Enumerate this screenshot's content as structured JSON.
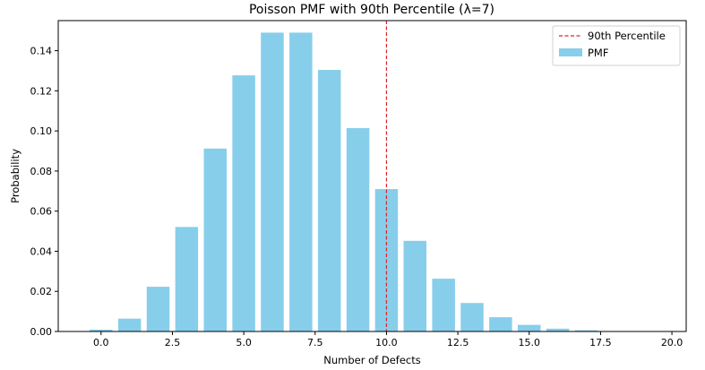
{
  "chart_data": {
    "type": "bar",
    "title": "Poisson PMF with 90th Percentile (λ=7)",
    "xlabel": "Number of Defects",
    "ylabel": "Probability",
    "x": [
      0,
      1,
      2,
      3,
      4,
      5,
      6,
      7,
      8,
      9,
      10,
      11,
      12,
      13,
      14,
      15,
      16,
      17,
      18,
      19,
      20
    ],
    "values": [
      0.0009,
      0.0064,
      0.0223,
      0.0521,
      0.0912,
      0.1277,
      0.149,
      0.149,
      0.1304,
      0.1014,
      0.071,
      0.0452,
      0.0263,
      0.0142,
      0.0071,
      0.0033,
      0.0014,
      0.0006,
      0.0002,
      0.0001,
      0.0
    ],
    "xlim": [
      -1.5,
      20.5
    ],
    "ylim": [
      0,
      0.155
    ],
    "xticks": [
      0,
      2.5,
      5,
      7.5,
      10,
      12.5,
      15,
      17.5,
      20
    ],
    "xtick_labels": [
      "0.0",
      "2.5",
      "5.0",
      "7.5",
      "10.0",
      "12.5",
      "15.0",
      "17.5",
      "20.0"
    ],
    "yticks": [
      0,
      0.02,
      0.04,
      0.06,
      0.08,
      0.1,
      0.12,
      0.14
    ],
    "ytick_labels": [
      "0.00",
      "0.02",
      "0.04",
      "0.06",
      "0.08",
      "0.10",
      "0.12",
      "0.14"
    ],
    "percentile_line": {
      "x": 10,
      "label": "90th Percentile"
    },
    "bar_label": "PMF",
    "legend_position": "top-right",
    "colors": {
      "bar": "#87ceeb",
      "percentile": "#d62728"
    }
  }
}
